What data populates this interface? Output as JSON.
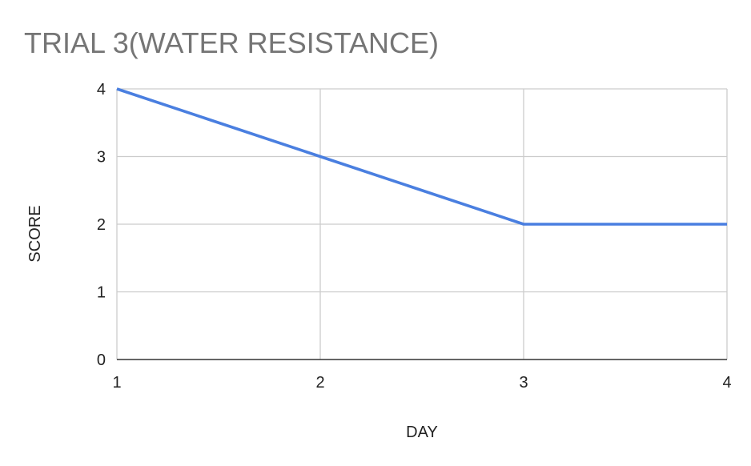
{
  "chart_data": {
    "type": "line",
    "title": "TRIAL 3(WATER RESISTANCE)",
    "xlabel": "DAY",
    "ylabel": "SCORE",
    "x": [
      1,
      2,
      3,
      4
    ],
    "x_tick_labels": [
      "1",
      "2",
      "3",
      "4"
    ],
    "y_tick_labels": [
      "0",
      "1",
      "2",
      "3",
      "4"
    ],
    "y_ticks": [
      0,
      1,
      2,
      3,
      4
    ],
    "xlim": [
      1,
      4
    ],
    "ylim": [
      0,
      4
    ],
    "grid": true,
    "legend": "none",
    "series": [
      {
        "values": [
          4,
          3,
          2,
          2
        ],
        "color": "#4a7fe0"
      }
    ]
  }
}
